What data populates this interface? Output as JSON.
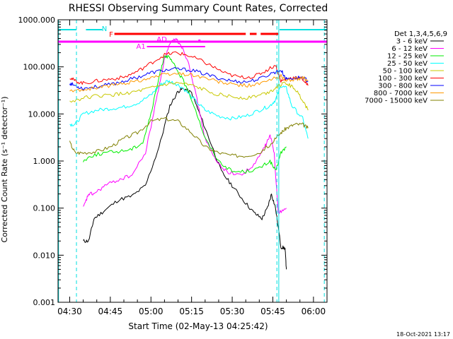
{
  "chart_data": {
    "type": "line",
    "title": "RHESSI Observing Summary Count Rates, Corrected",
    "ylabel": "Corrected Count Rate (s⁻¹ detector⁻¹)",
    "xlabel": "Start Time (02-May-13 04:25:42)",
    "footer": "18-Oct-2021 13:17",
    "y_scale": "log",
    "ylim": [
      0.001,
      1000
    ],
    "xlim": [
      "04:25:42",
      "06:05:00"
    ],
    "y_ticks": [
      "0.001",
      "0.010",
      "0.100",
      "1.000",
      "10.000",
      "100.000",
      "1000.000"
    ],
    "y_tick_values": [
      0.001,
      0.01,
      0.1,
      1,
      10,
      100,
      1000
    ],
    "x_ticks": [
      "04:30",
      "04:45",
      "05:00",
      "05:15",
      "05:30",
      "05:45",
      "06:00"
    ],
    "x_tick_minutes": [
      270,
      285,
      300,
      315,
      330,
      345,
      360
    ],
    "legend": {
      "title": "Det 1,3,4,5,6,9",
      "position": "right",
      "entries": [
        {
          "label": "3 - 6 keV",
          "color": "#000000"
        },
        {
          "label": "6 - 12 keV",
          "color": "#ff00ff"
        },
        {
          "label": "12 - 25 keV",
          "color": "#00ee00"
        },
        {
          "label": "25 - 50 keV",
          "color": "#00ffff"
        },
        {
          "label": "50 - 100 keV",
          "color": "#c8c800"
        },
        {
          "label": "100 - 300 keV",
          "color": "#ff0000"
        },
        {
          "label": "300 - 800 keV",
          "color": "#0000ff"
        },
        {
          "label": "800 - 7000 keV",
          "color": "#ff9900"
        },
        {
          "label": "7000 - 15000 keV",
          "color": "#808000"
        }
      ]
    },
    "series": [
      {
        "name": "3 - 6 keV",
        "color": "#000000",
        "x": [
          275,
          277,
          279,
          283,
          288,
          293,
          298,
          303,
          307,
          310,
          312,
          315,
          318,
          322,
          326,
          330,
          334,
          338,
          341,
          343,
          344.5,
          346,
          348,
          349.5,
          350
        ],
        "y": [
          0.02,
          0.02,
          0.06,
          0.09,
          0.15,
          0.18,
          0.3,
          2,
          15,
          30,
          35,
          28,
          10,
          2.5,
          0.6,
          0.3,
          0.15,
          0.08,
          0.06,
          0.1,
          0.2,
          0.1,
          0.015,
          0.014,
          0.005
        ]
      },
      {
        "name": "6 - 12 keV",
        "color": "#ff00ff",
        "x": [
          275,
          277,
          279,
          283,
          288,
          293,
          298,
          302,
          305,
          307,
          309,
          311,
          314,
          317,
          320,
          324,
          328,
          333,
          338,
          342,
          344,
          345.5,
          347,
          350
        ],
        "y": [
          0.1,
          0.2,
          0.2,
          0.3,
          0.4,
          0.5,
          1.5,
          20,
          150,
          300,
          400,
          300,
          120,
          20,
          3,
          1.0,
          0.6,
          0.5,
          0.8,
          2,
          3.5,
          1.5,
          0.08,
          0.1
        ]
      },
      {
        "name": "12 - 25 keV",
        "color": "#00ee00",
        "x": [
          275,
          278,
          283,
          288,
          293,
          297,
          300,
          303,
          305,
          307,
          309,
          312,
          316,
          320,
          325,
          330,
          335,
          340,
          344,
          346,
          348,
          350
        ],
        "y": [
          1.0,
          1.3,
          1.5,
          1.6,
          1.8,
          2.5,
          10,
          60,
          180,
          150,
          100,
          50,
          15,
          3,
          1.0,
          0.6,
          0.6,
          0.7,
          1.0,
          0.6,
          1.5,
          2
        ]
      },
      {
        "name": "25 - 50 keV",
        "color": "#00ffff",
        "x": [
          270,
          272,
          275,
          280,
          285,
          290,
          295,
          300,
          303,
          306,
          309,
          312,
          316,
          320,
          325,
          330,
          335,
          340,
          344,
          346,
          348,
          350,
          352,
          356,
          358
        ],
        "y": [
          6,
          6,
          10,
          12,
          13,
          14,
          17,
          25,
          40,
          50,
          45,
          35,
          20,
          12,
          9,
          8,
          9,
          12,
          15,
          20,
          40,
          35,
          15,
          8,
          3
        ]
      },
      {
        "name": "50 - 100 keV",
        "color": "#c8c800",
        "x": [
          270,
          275,
          280,
          285,
          290,
          295,
          300,
          305,
          310,
          315,
          320,
          325,
          330,
          335,
          340,
          344,
          347,
          350,
          353,
          356,
          358
        ],
        "y": [
          18,
          22,
          24,
          25,
          27,
          30,
          35,
          42,
          45,
          40,
          32,
          26,
          23,
          22,
          25,
          30,
          40,
          45,
          35,
          20,
          12
        ]
      },
      {
        "name": "100 - 300 keV",
        "color": "#ff0000",
        "x": [
          270,
          272,
          275,
          280,
          285,
          290,
          295,
          300,
          305,
          309,
          313,
          318,
          323,
          328,
          333,
          338,
          342,
          346,
          348,
          350,
          353,
          356,
          358
        ],
        "y": [
          60,
          50,
          45,
          50,
          55,
          60,
          80,
          120,
          180,
          200,
          180,
          140,
          100,
          70,
          60,
          62,
          80,
          110,
          50,
          55,
          60,
          55,
          40
        ]
      },
      {
        "name": "300 - 800 keV",
        "color": "#0000ff",
        "x": [
          270,
          272,
          275,
          280,
          285,
          290,
          295,
          300,
          305,
          310,
          315,
          320,
          325,
          330,
          335,
          340,
          345,
          348,
          350,
          353,
          356,
          358
        ],
        "y": [
          45,
          40,
          35,
          38,
          42,
          50,
          60,
          75,
          85,
          90,
          85,
          70,
          58,
          50,
          48,
          55,
          75,
          85,
          55,
          58,
          60,
          50
        ]
      },
      {
        "name": "800 - 7000 keV",
        "color": "#ff9900",
        "x": [
          270,
          275,
          280,
          285,
          290,
          295,
          300,
          305,
          310,
          315,
          320,
          325,
          330,
          335,
          340,
          345,
          348,
          350,
          353,
          356,
          358
        ],
        "y": [
          30,
          33,
          36,
          40,
          45,
          50,
          60,
          68,
          72,
          68,
          58,
          48,
          42,
          40,
          43,
          55,
          65,
          50,
          55,
          58,
          50
        ]
      },
      {
        "name": "7000 - 15000 keV",
        "color": "#808000",
        "x": [
          270,
          272,
          275,
          280,
          285,
          290,
          295,
          300,
          305,
          310,
          315,
          320,
          325,
          330,
          335,
          340,
          345,
          348,
          350,
          353,
          356,
          358
        ],
        "y": [
          2.5,
          1.5,
          1.5,
          1.6,
          2,
          3,
          4,
          7,
          8,
          7,
          4,
          2,
          1.5,
          1.3,
          1.3,
          1.5,
          2.5,
          4,
          5,
          6,
          6,
          5
        ]
      }
    ],
    "flags": [
      {
        "label": "N",
        "color": "#00e0e0"
      },
      {
        "label": "F",
        "color": "#ff0000"
      },
      {
        "label": "AD",
        "color": "#ff00ff"
      },
      {
        "label": "A1",
        "color": "#ff00ff"
      }
    ]
  }
}
